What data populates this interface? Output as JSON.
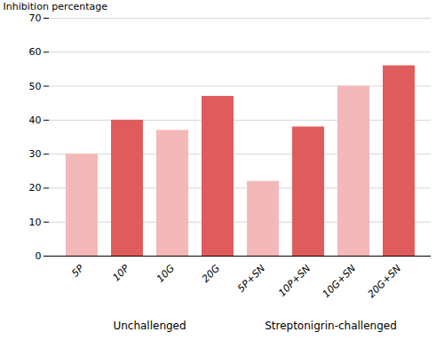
{
  "chart_data": {
    "type": "bar",
    "categories": [
      "5P",
      "10P",
      "10G",
      "20G",
      "5P+SN",
      "10P+SN",
      "10G+SN",
      "20G+SN"
    ],
    "values": [
      30,
      40,
      37,
      47,
      22,
      38,
      50,
      56
    ],
    "colors": [
      "#F5B8B8",
      "#E05C5C",
      "#F5B8B8",
      "#E05C5C",
      "#F5B8B8",
      "#E05C5C",
      "#F5B8B8",
      "#E05C5C"
    ],
    "ylabel": "Inhibition percentage",
    "ylim": [
      0,
      70
    ],
    "yticks": [
      0,
      10,
      20,
      30,
      40,
      50,
      60,
      70
    ],
    "grid": true,
    "annotations": [
      "Unchallenged",
      "Streptonigrin-challenged"
    ]
  }
}
